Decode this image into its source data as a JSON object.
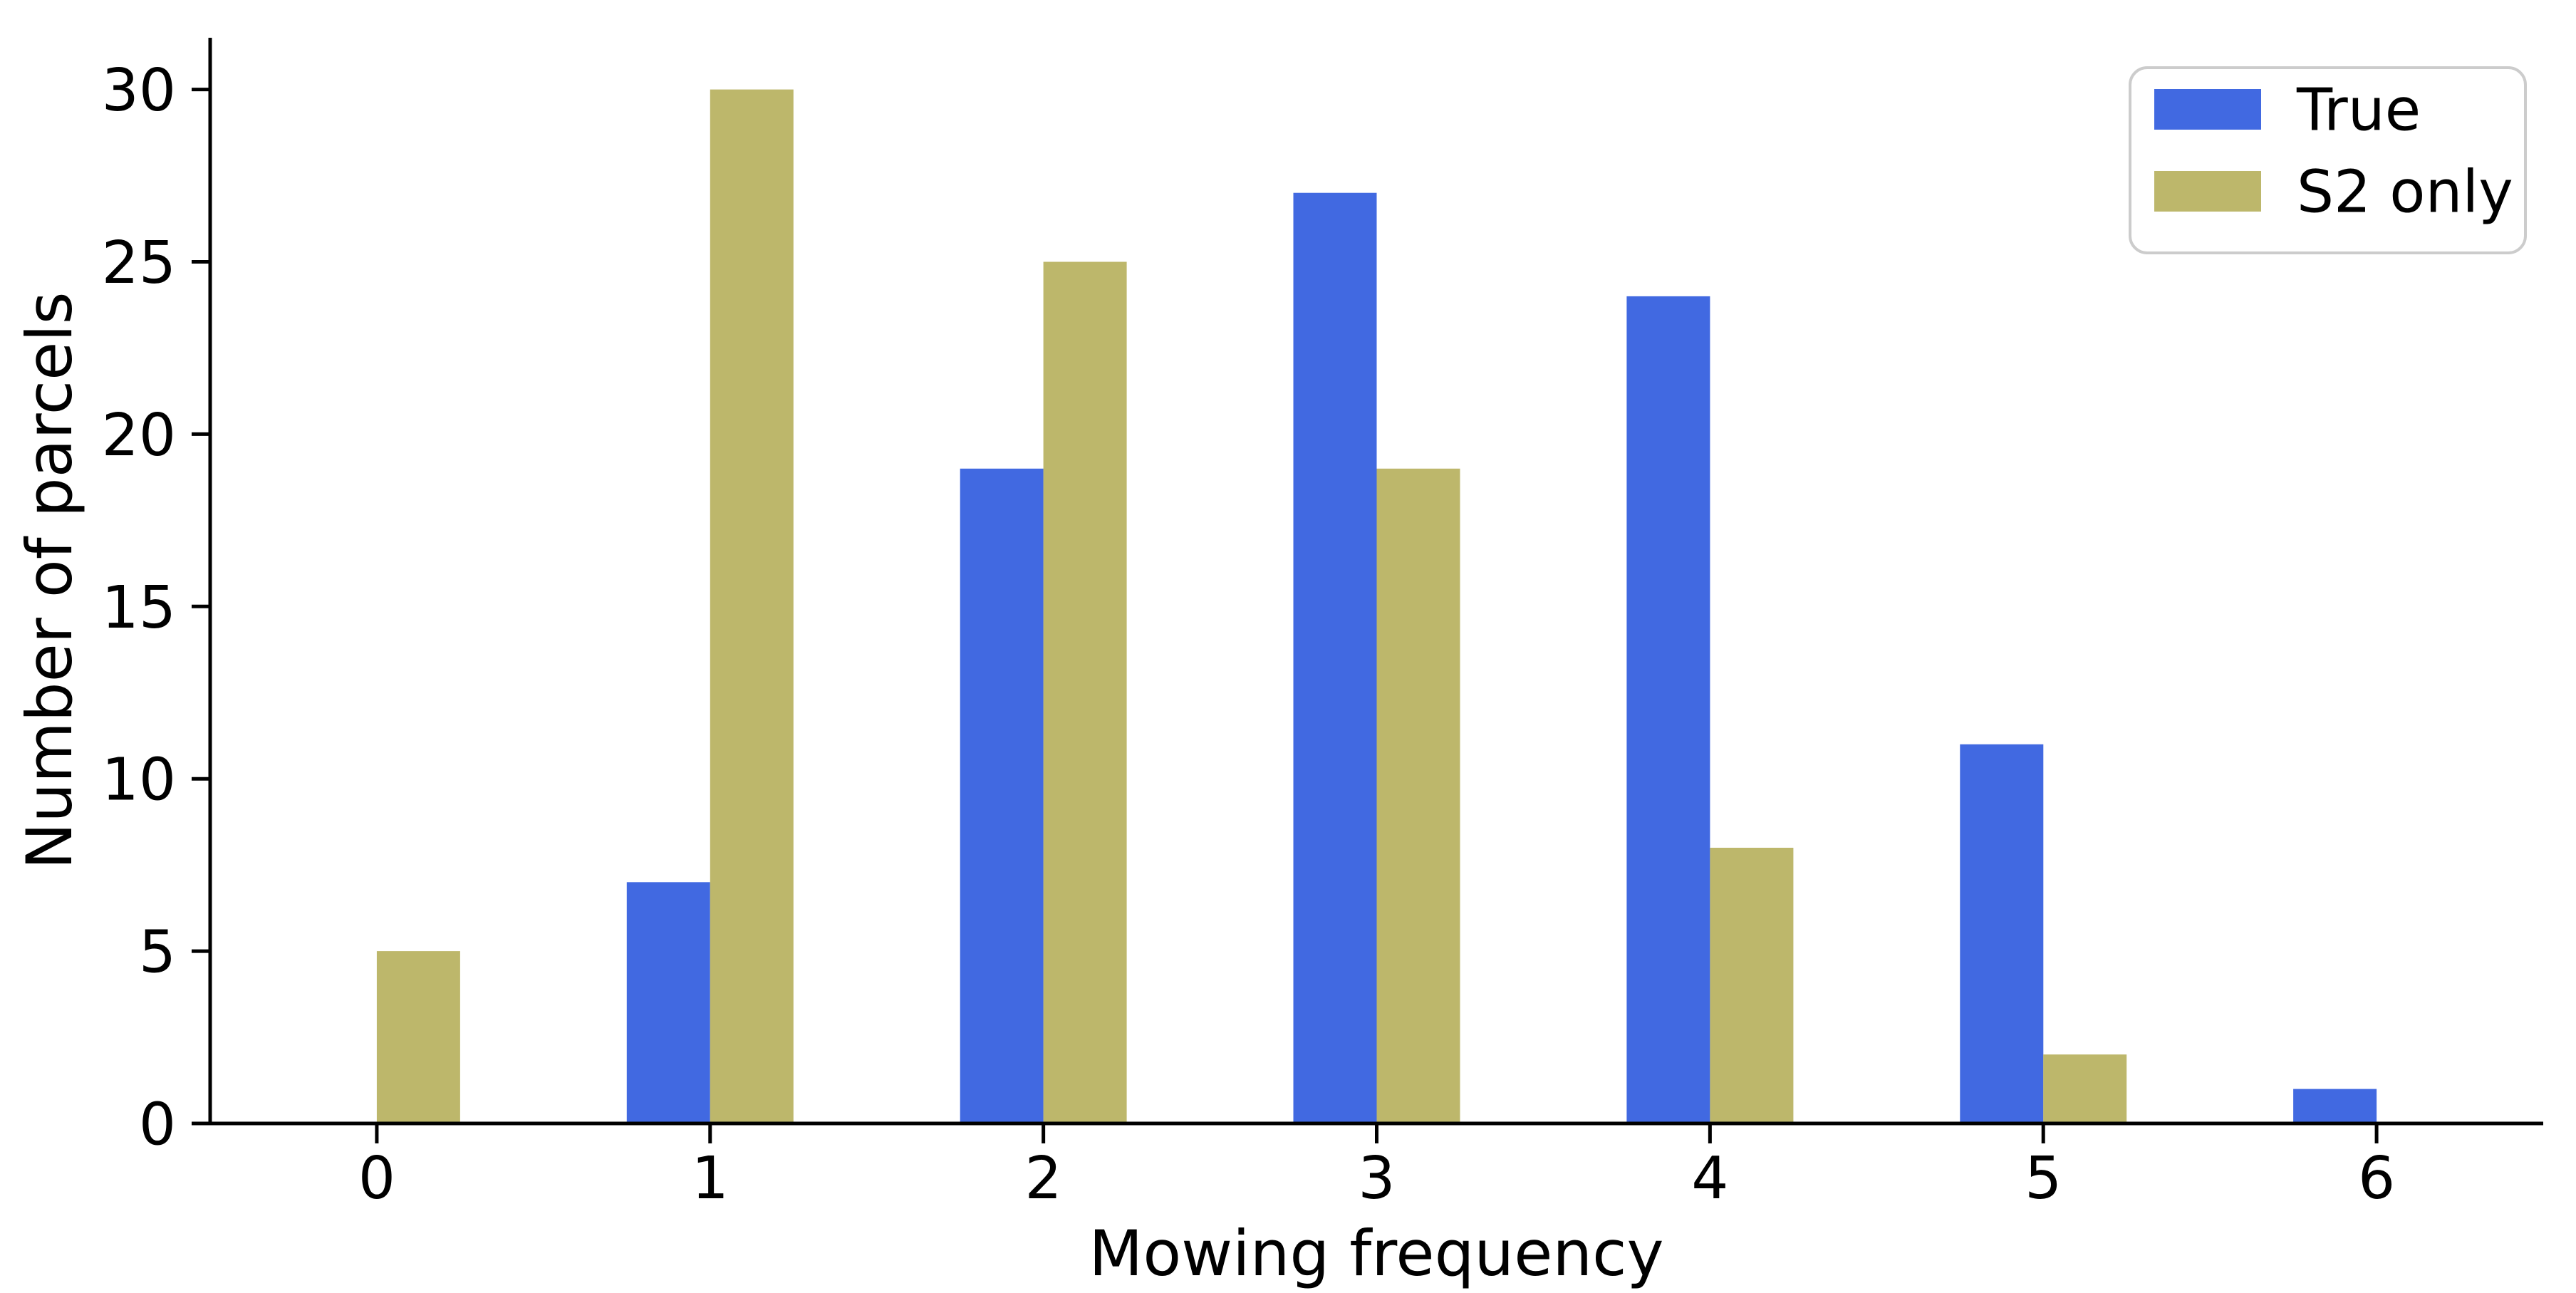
{
  "chart_data": {
    "type": "bar",
    "title": "",
    "xlabel": "Mowing frequency",
    "ylabel": "Number of parcels",
    "categories": [
      "0",
      "1",
      "2",
      "3",
      "4",
      "5",
      "6"
    ],
    "series": [
      {
        "name": "True",
        "color": "#4169E1",
        "values": [
          0,
          7,
          19,
          27,
          24,
          11,
          1
        ]
      },
      {
        "name": "S2 only",
        "color": "#BDB76B",
        "values": [
          5,
          30,
          25,
          19,
          8,
          2,
          0
        ]
      }
    ],
    "ylim": [
      0,
      31.5
    ],
    "yticks": [
      "0",
      "5",
      "10",
      "15",
      "20",
      "25",
      "30"
    ],
    "bar_width_units": 0.25,
    "grid": false,
    "legend_position": "upper right",
    "axis_color": "#000000",
    "legend_border_color": "#cccccc"
  }
}
